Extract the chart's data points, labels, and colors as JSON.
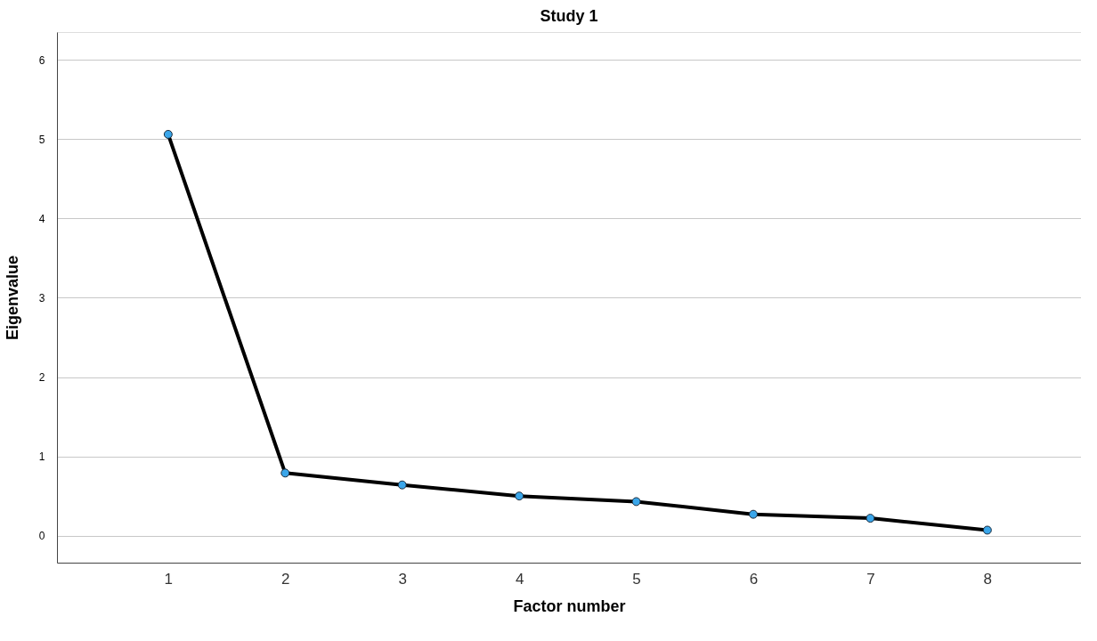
{
  "chart_data": {
    "type": "line",
    "title": "Study 1",
    "xlabel": "Factor number",
    "ylabel": "Eigenvalue",
    "x": [
      1,
      2,
      3,
      4,
      5,
      6,
      7,
      8
    ],
    "series": [
      {
        "color": "#000000",
        "values": [
          5.06,
          0.79,
          0.64,
          0.5,
          0.43,
          0.27,
          0.22,
          0.07
        ]
      }
    ],
    "xlim": [
      0.05,
      8.8
    ],
    "xticks": [
      1,
      2,
      3,
      4,
      5,
      6,
      7,
      8
    ],
    "ylim": [
      -0.34,
      6.35
    ],
    "yticks": [
      0,
      1,
      2,
      3,
      4,
      5,
      6
    ],
    "grid": "y",
    "marker": "circle",
    "line_style": "solid"
  }
}
